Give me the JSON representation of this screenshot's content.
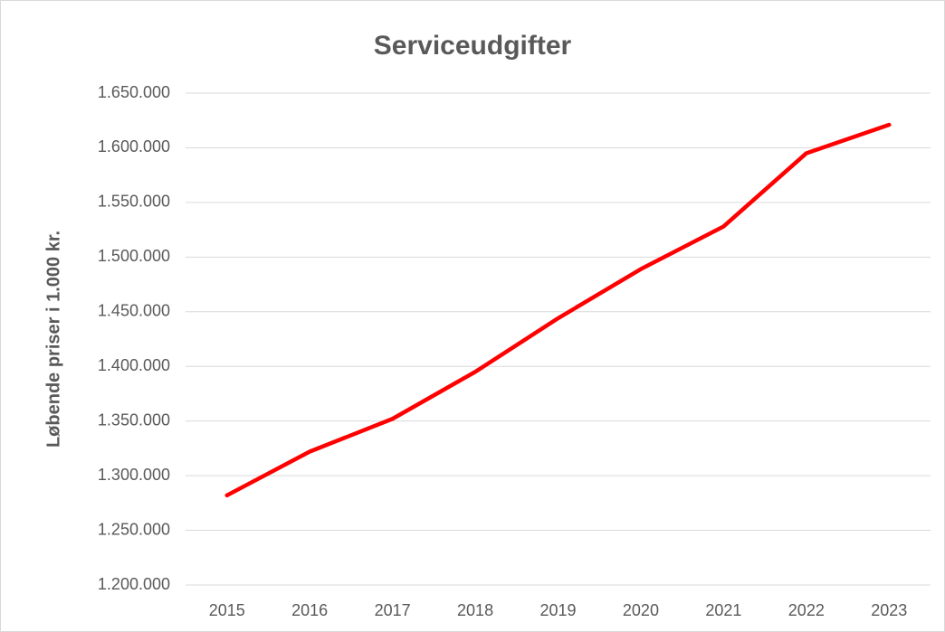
{
  "chart_data": {
    "type": "line",
    "title": "Serviceudgifter",
    "y_label": "Løbende priser i 1.000 kr.",
    "categories": [
      "2015",
      "2016",
      "2017",
      "2018",
      "2019",
      "2020",
      "2021",
      "2022",
      "2023"
    ],
    "series": [
      {
        "name": "Serviceudgifter",
        "color": "#ff0000",
        "values": [
          1282000,
          1322000,
          1352000,
          1395000,
          1444000,
          1489000,
          1528000,
          1595000,
          1621000
        ]
      }
    ],
    "ylim": [
      1200000,
      1650000
    ],
    "yticks": [
      {
        "value": 1200000,
        "label": "1.200.000"
      },
      {
        "value": 1250000,
        "label": "1.250.000"
      },
      {
        "value": 1300000,
        "label": "1.300.000"
      },
      {
        "value": 1350000,
        "label": "1.350.000"
      },
      {
        "value": 1400000,
        "label": "1.400.000"
      },
      {
        "value": 1450000,
        "label": "1.450.000"
      },
      {
        "value": 1500000,
        "label": "1.500.000"
      },
      {
        "value": 1550000,
        "label": "1.550.000"
      },
      {
        "value": 1600000,
        "label": "1.600.000"
      },
      {
        "value": 1650000,
        "label": "1.650.000"
      }
    ],
    "grid": true,
    "legend": false
  }
}
